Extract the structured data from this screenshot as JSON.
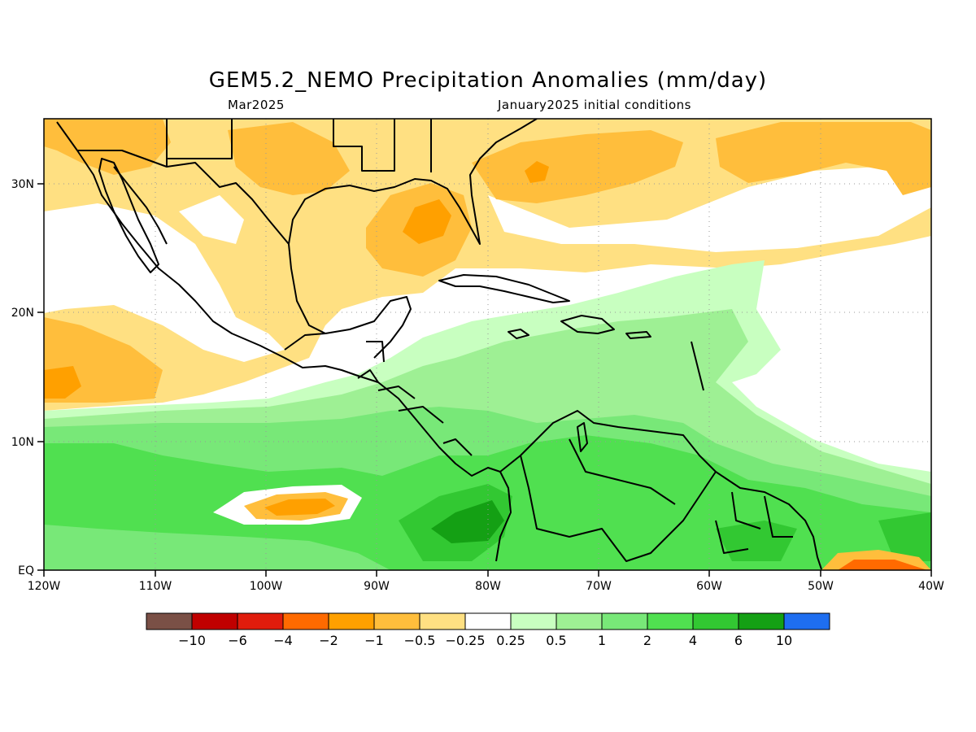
{
  "title": "GEM5.2_NEMO Precipitation Anomalies (mm/day)",
  "subtitle_left": "Mar2025",
  "subtitle_right": "January2025 initial conditions",
  "x_ticks": [
    "120W",
    "110W",
    "100W",
    "90W",
    "80W",
    "70W",
    "60W",
    "50W",
    "40W"
  ],
  "y_ticks": [
    "EQ",
    "10N",
    "20N",
    "30N"
  ],
  "colorbar": {
    "colors": [
      "#7a5046",
      "#c00000",
      "#e01c0c",
      "#ff6a00",
      "#ffa000",
      "#ffbe3c",
      "#ffe082",
      "#ffffff",
      "#c8ffc0",
      "#9ef094",
      "#78e878",
      "#50e050",
      "#32c832",
      "#14a014",
      "#1e6ef0"
    ],
    "labels": [
      "−10",
      "−6",
      "−4",
      "−2",
      "−1",
      "−0.5",
      "−0.25",
      "0.25",
      "0.5",
      "1",
      "2",
      "4",
      "6",
      "10"
    ]
  },
  "map": {
    "lon_range": [
      -120,
      -40
    ],
    "lat_range": [
      0,
      35
    ],
    "variable": "Precipitation anomaly",
    "units": "mm/day"
  }
}
